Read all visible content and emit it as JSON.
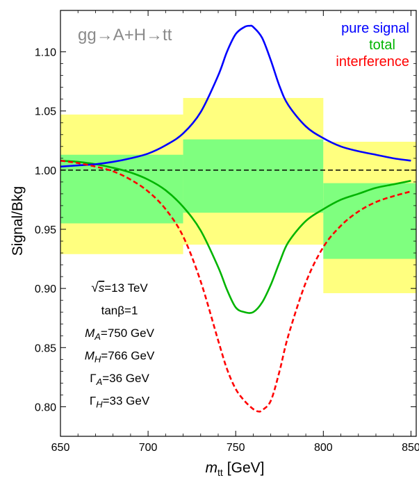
{
  "chart_data": {
    "type": "line",
    "xlabel_main": "m",
    "xlabel_sub": "tt",
    "xlabel_unit": "[GeV]",
    "ylabel": "Signal/Bkg",
    "xlim": [
      650,
      853
    ],
    "ylim": [
      0.775,
      1.135
    ],
    "x_ticks": [
      650,
      700,
      750,
      800,
      850
    ],
    "x_tick_labels": [
      "650",
      "700",
      "750",
      "800",
      "850"
    ],
    "y_ticks": [
      0.8,
      0.85,
      0.9,
      0.95,
      1.0,
      1.05,
      1.1
    ],
    "y_tick_labels": [
      "0.80",
      "0.85",
      "0.90",
      "0.95",
      "1.00",
      "1.05",
      "1.10"
    ],
    "process_label": "gg→A+H→tt",
    "legend": [
      {
        "label": "pure signal",
        "color": "#0000ff"
      },
      {
        "label": "total",
        "color": "#00b400"
      },
      {
        "label": "interference",
        "color": "#ff0000"
      }
    ],
    "parameters": [
      {
        "prefix": "√",
        "main": "s",
        "suffix": "=13 TeV",
        "style": "sqrt"
      },
      {
        "main": "tanβ",
        "suffix": "=1",
        "style": "plain"
      },
      {
        "main": "M",
        "sub": "A",
        "suffix": "=750 GeV",
        "style": "italic-sub"
      },
      {
        "main": "M",
        "sub": "H",
        "suffix": "=766 GeV",
        "style": "italic-sub"
      },
      {
        "main": "Γ",
        "sub": "A",
        "suffix": "=36 GeV",
        "style": "sub"
      },
      {
        "main": "Γ",
        "sub": "H",
        "suffix": "=33 GeV",
        "style": "sub"
      }
    ],
    "bins": [
      {
        "x0": 650,
        "x1": 720,
        "green": [
          0.955,
          1.013
        ],
        "yellow": [
          0.929,
          1.047
        ]
      },
      {
        "x0": 720,
        "x1": 800,
        "green": [
          0.964,
          1.026
        ],
        "yellow": [
          0.937,
          1.061
        ]
      },
      {
        "x0": 800,
        "x1": 853,
        "green": [
          0.925,
          0.989
        ],
        "yellow": [
          0.896,
          1.024
        ]
      }
    ],
    "reference_line": 1.0,
    "series": [
      {
        "name": "pure signal",
        "color": "#0000ff",
        "dash": false,
        "x": [
          650,
          660,
          670,
          680,
          690,
          700,
          710,
          720,
          730,
          740,
          745,
          750,
          755,
          758,
          760,
          765,
          770,
          775,
          780,
          790,
          800,
          810,
          820,
          830,
          840,
          850
        ],
        "y": [
          1.003,
          1.004,
          1.005,
          1.007,
          1.01,
          1.014,
          1.021,
          1.031,
          1.049,
          1.08,
          1.1,
          1.115,
          1.121,
          1.122,
          1.121,
          1.112,
          1.093,
          1.071,
          1.055,
          1.037,
          1.027,
          1.02,
          1.016,
          1.013,
          1.01,
          1.008
        ]
      },
      {
        "name": "total",
        "color": "#00b400",
        "dash": false,
        "x": [
          650,
          660,
          670,
          680,
          690,
          700,
          710,
          720,
          730,
          740,
          745,
          750,
          755,
          760,
          765,
          770,
          775,
          780,
          790,
          800,
          810,
          820,
          830,
          840,
          850
        ],
        "y": [
          1.008,
          1.007,
          1.005,
          1.002,
          0.998,
          0.992,
          0.983,
          0.969,
          0.949,
          0.918,
          0.899,
          0.884,
          0.88,
          0.88,
          0.888,
          0.903,
          0.922,
          0.939,
          0.957,
          0.967,
          0.975,
          0.98,
          0.985,
          0.988,
          0.991
        ]
      },
      {
        "name": "interference",
        "color": "#ff0000",
        "dash": true,
        "x": [
          650,
          660,
          670,
          680,
          690,
          700,
          710,
          720,
          730,
          740,
          745,
          750,
          755,
          760,
          763,
          765,
          770,
          775,
          780,
          790,
          800,
          810,
          820,
          830,
          840,
          850
        ],
        "y": [
          1.008,
          1.006,
          1.003,
          0.999,
          0.992,
          0.982,
          0.967,
          0.944,
          0.906,
          0.856,
          0.832,
          0.815,
          0.805,
          0.798,
          0.796,
          0.797,
          0.805,
          0.83,
          0.86,
          0.905,
          0.935,
          0.953,
          0.965,
          0.973,
          0.978,
          0.982
        ]
      }
    ]
  }
}
